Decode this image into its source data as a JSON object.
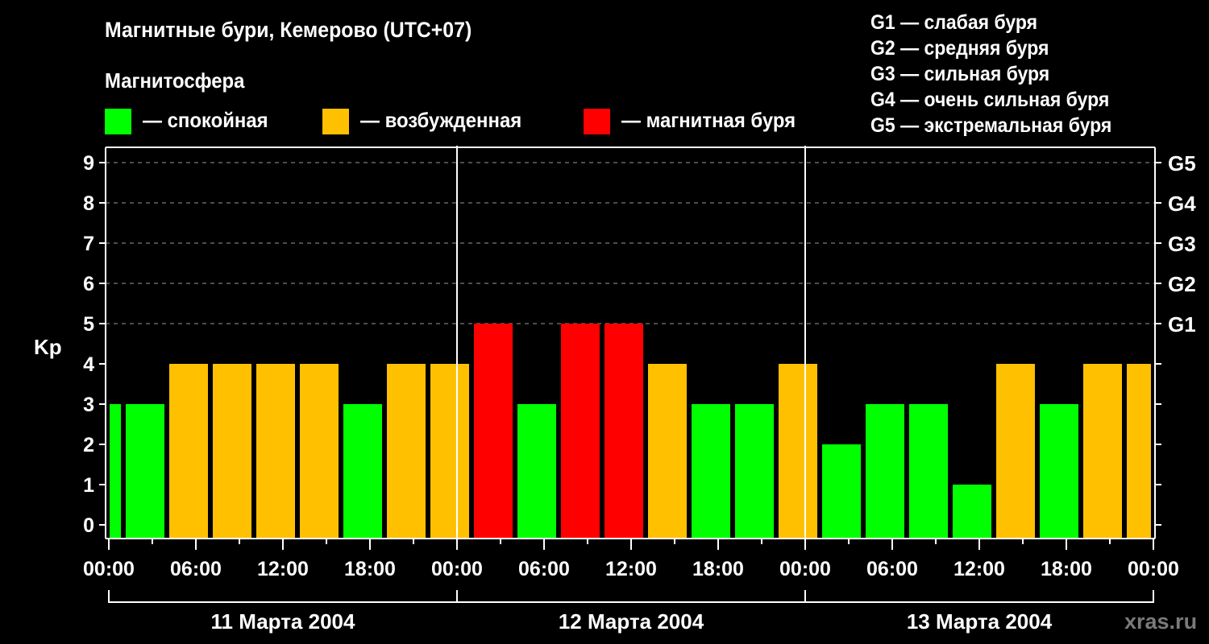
{
  "header": {
    "title": "Магнитные бури, Кемерово (UTC+07)",
    "subtitle": "Магнитосфера"
  },
  "legend": {
    "items": [
      {
        "label": "— спокойная",
        "color": "#00ff00"
      },
      {
        "label": "— возбужденная",
        "color": "#ffc000"
      },
      {
        "label": "— магнитная буря",
        "color": "#ff0000"
      }
    ]
  },
  "g_legend": [
    "G1 — слабая буря",
    "G2 — средняя буря",
    "G3 — сильная буря",
    "G4 — очень сильная буря",
    "G5 — экстремальная буря"
  ],
  "watermark": "xras.ru",
  "chart_data": {
    "type": "bar",
    "title": "Магнитные бури, Кемерово (UTC+07)",
    "xlabel": "",
    "ylabel": "Kp",
    "ylim": [
      0,
      9
    ],
    "y_ticks": [
      0,
      1,
      2,
      3,
      4,
      5,
      6,
      7,
      8,
      9
    ],
    "right_axis_labels": [
      {
        "kp": 5,
        "label": "G1"
      },
      {
        "kp": 6,
        "label": "G2"
      },
      {
        "kp": 7,
        "label": "G3"
      },
      {
        "kp": 8,
        "label": "G4"
      },
      {
        "kp": 9,
        "label": "G5"
      }
    ],
    "grid": "dashed horizontal at Kp 5-9",
    "x_tick_labels": [
      "00:00",
      "06:00",
      "12:00",
      "18:00",
      "00:00",
      "06:00",
      "12:00",
      "18:00",
      "00:00",
      "06:00",
      "12:00",
      "18:00",
      "00:00"
    ],
    "days": [
      "11 Марта 2004",
      "12 Марта 2004",
      "13 Марта 2004"
    ],
    "colors": {
      "quiet": "#00ff00",
      "active": "#ffc000",
      "storm": "#ff0000"
    },
    "bars": [
      {
        "start_hour": -2,
        "value": 3,
        "state": "quiet"
      },
      {
        "start_hour": 1,
        "value": 3,
        "state": "quiet"
      },
      {
        "start_hour": 4,
        "value": 4,
        "state": "active"
      },
      {
        "start_hour": 7,
        "value": 4,
        "state": "active"
      },
      {
        "start_hour": 10,
        "value": 4,
        "state": "active"
      },
      {
        "start_hour": 13,
        "value": 4,
        "state": "active"
      },
      {
        "start_hour": 16,
        "value": 3,
        "state": "quiet"
      },
      {
        "start_hour": 19,
        "value": 4,
        "state": "active"
      },
      {
        "start_hour": 22,
        "value": 4,
        "state": "active"
      },
      {
        "start_hour": 25,
        "value": 5,
        "state": "storm"
      },
      {
        "start_hour": 28,
        "value": 3,
        "state": "quiet"
      },
      {
        "start_hour": 31,
        "value": 5,
        "state": "storm"
      },
      {
        "start_hour": 34,
        "value": 5,
        "state": "storm"
      },
      {
        "start_hour": 37,
        "value": 4,
        "state": "active"
      },
      {
        "start_hour": 40,
        "value": 3,
        "state": "quiet"
      },
      {
        "start_hour": 43,
        "value": 3,
        "state": "quiet"
      },
      {
        "start_hour": 46,
        "value": 4,
        "state": "active"
      },
      {
        "start_hour": 49,
        "value": 2,
        "state": "quiet"
      },
      {
        "start_hour": 52,
        "value": 3,
        "state": "quiet"
      },
      {
        "start_hour": 55,
        "value": 3,
        "state": "quiet"
      },
      {
        "start_hour": 58,
        "value": 1,
        "state": "quiet"
      },
      {
        "start_hour": 61,
        "value": 4,
        "state": "active"
      },
      {
        "start_hour": 64,
        "value": 3,
        "state": "quiet"
      },
      {
        "start_hour": 67,
        "value": 4,
        "state": "active"
      },
      {
        "start_hour": 70,
        "value": 4,
        "state": "active"
      }
    ]
  }
}
